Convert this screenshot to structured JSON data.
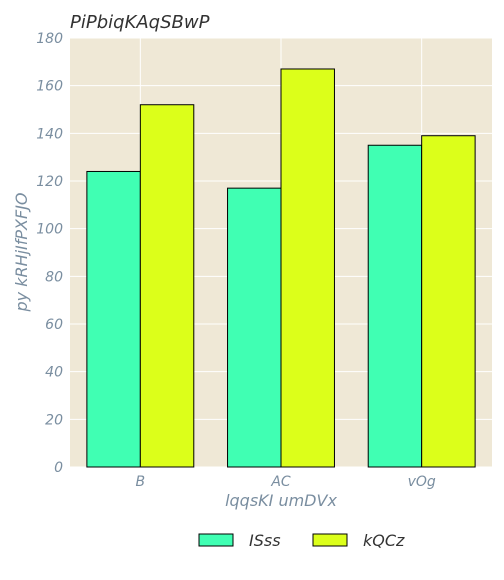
{
  "chart_data": {
    "type": "bar",
    "title": "PiPbiqKAqSBwP",
    "xlabel": "lqqsKI umDVx",
    "ylabel": "py kRHjIfPXFJO",
    "categories": [
      "B",
      "AC",
      "vOg"
    ],
    "series": [
      {
        "name": "ISss",
        "values": [
          124,
          117,
          135
        ],
        "color": "#40ffb3"
      },
      {
        "name": "kQCz",
        "values": [
          152,
          167,
          139
        ],
        "color": "#dcff1a"
      }
    ],
    "ylim": [
      0,
      180
    ],
    "yticks": [
      0,
      20,
      40,
      60,
      80,
      100,
      120,
      140,
      160,
      180
    ],
    "grid": true,
    "legend_position": "bottom-center",
    "colors": {
      "plot_background": "#efe8d6",
      "grid": "#ffffff",
      "text": "#7a8ea0",
      "title_text": "#333333",
      "bar_edge": "#000000"
    }
  }
}
